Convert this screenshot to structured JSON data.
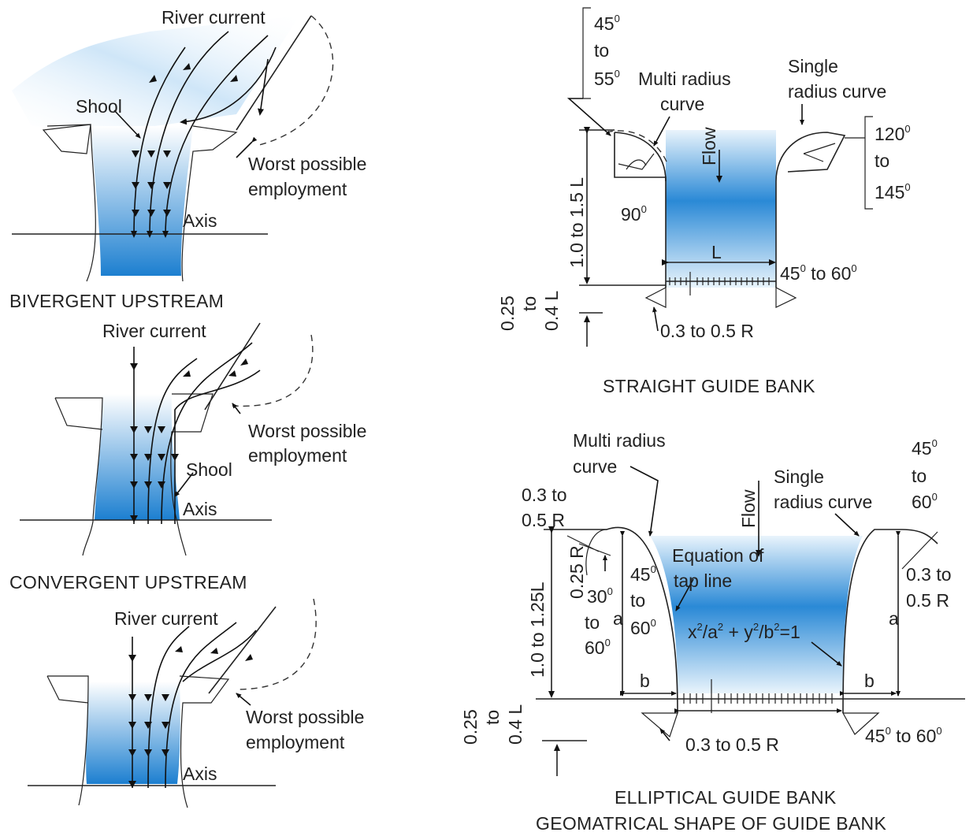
{
  "figure": {
    "caption": "GEOMATRICAL SHAPE OF GUIDE BANK"
  },
  "bivergent": {
    "title": "BIVERGENT UPSTREAM",
    "river_current": "River current",
    "shool": "Shool",
    "worst_line1": "Worst possible",
    "worst_line2": "employment",
    "axis": "Axis"
  },
  "convergent": {
    "title": "CONVERGENT UPSTREAM",
    "river_current": "River current",
    "shool": "Shool",
    "worst_line1": "Worst possible",
    "worst_line2": "employment",
    "axis": "Axis"
  },
  "third": {
    "river_current": "River current",
    "worst_line1": "Worst possible",
    "worst_line2": "employment",
    "axis": "Axis"
  },
  "straight": {
    "title": "STRAIGHT GUIDE BANK",
    "angle_top_a": "45",
    "angle_top_to": "to",
    "angle_top_b": "55",
    "multi1": "Multi radius",
    "multi2": "curve",
    "single1": "Single",
    "single2": "radius curve",
    "angle_r_a": "120",
    "angle_r_to": "to",
    "angle_r_b": "145",
    "flow": "Flow",
    "left_dim": "1.0 to 1.5 L",
    "ninety": "90",
    "L": "L",
    "angle_br": "45",
    "angle_br_rest": " to 60",
    "bottom_dim": "0.25\nto\n0.4 L",
    "radius_label": "0.3 to 0.5 R",
    "degree": "0"
  },
  "elliptical": {
    "title": "ELLIPTICAL GUIDE BANK",
    "multi1": "Multi radius",
    "multi2": "curve",
    "flow": "Flow",
    "single1": "Single",
    "single2": "radius curve",
    "angle_tr_a": "45",
    "angle_tr_to": "to",
    "angle_tr_b": "60",
    "r_top1": "0.3 to",
    "r_top2": "0.5 R",
    "r_left": "0.25 R",
    "a30": "30",
    "a30_to": "to",
    "a30_b": "60",
    "a45": "45",
    "a45_to": "to",
    "a45_b": "60",
    "a_left": "a",
    "eq1": "Equation of",
    "eq2": "tap line",
    "eq_formula_x": "x",
    "eq_formula_a": "/a",
    "eq_formula_plus": " + y",
    "eq_formula_b": "/b",
    "eq_formula_end": "=1",
    "sq": "2",
    "r_right1": "0.3 to",
    "r_right2": "0.5 R",
    "a_right": "a",
    "left_dim": "1.0 to 1.25L",
    "b_left": "b",
    "b_right": "b",
    "bottom_dim": "0.25\nto\n0.4 L",
    "radius_label": "0.3 to 0.5 R",
    "angle_br": "45",
    "angle_br_rest": " to 60"
  }
}
